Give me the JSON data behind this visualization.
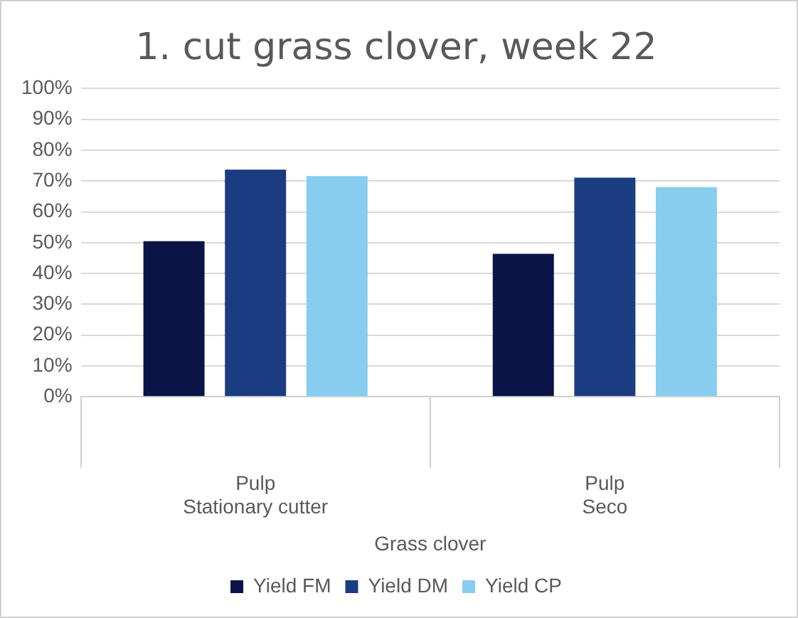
{
  "chart_data": {
    "type": "bar",
    "title": "1. cut grass clover, week 22",
    "xlabel": "Grass clover",
    "categories": [
      "Pulp\nStationary cutter",
      "Pulp\nSeco"
    ],
    "series": [
      {
        "name": "Yield FM",
        "color": "#0a1446",
        "values": [
          50.5,
          46.4
        ]
      },
      {
        "name": "Yield DM",
        "color": "#1a3c80",
        "values": [
          73.7,
          71.1
        ]
      },
      {
        "name": "Yield CP",
        "color": "#86cdf0",
        "values": [
          71.6,
          68.0
        ]
      }
    ],
    "ylim": [
      0,
      100
    ],
    "yticks": [
      {
        "value": 0,
        "label": "0%"
      },
      {
        "value": 10,
        "label": "10%"
      },
      {
        "value": 20,
        "label": "20%"
      },
      {
        "value": 30,
        "label": "30%"
      },
      {
        "value": 40,
        "label": "40%"
      },
      {
        "value": 50,
        "label": "50%"
      },
      {
        "value": 60,
        "label": "60%"
      },
      {
        "value": 70,
        "label": "70%"
      },
      {
        "value": 80,
        "label": "80%"
      },
      {
        "value": 90,
        "label": "90%"
      },
      {
        "value": 100,
        "label": "100%"
      }
    ],
    "grid": true,
    "legend": "bottom"
  }
}
